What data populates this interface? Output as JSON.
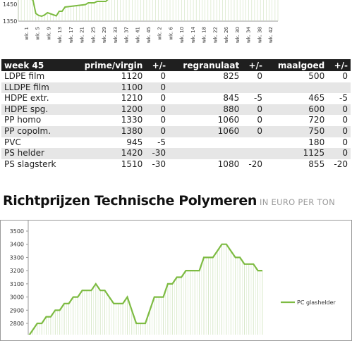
{
  "top_chart": {
    "type": "area",
    "y_ticks": [
      "1450",
      "1350"
    ],
    "x_labels": [
      "wk. 1",
      "wk. 5",
      "wk. 9",
      "wk. 13",
      "wk. 17",
      "wk. 21",
      "wk. 25",
      "wk. 29",
      "wk. 33",
      "wk. 37",
      "wk. 41",
      "wk. 45",
      "wk. 2",
      "wk. 6",
      "wk. 10",
      "wk. 14",
      "wk. 18",
      "wk. 22",
      "wk. 26",
      "wk. 30",
      "wk. 34",
      "wk. 38",
      "wk. 42"
    ],
    "line_color": "#7dbb42"
  },
  "table": {
    "headers": [
      "week 45",
      "prime/virgin",
      "+/-",
      "regranulaat",
      "+/-",
      "maalgoed",
      "+/-"
    ],
    "rows": [
      [
        "LDPE film",
        "1120",
        "0",
        "825",
        "0",
        "500",
        "0"
      ],
      [
        "LLDPE film",
        "1100",
        "0",
        "",
        "",
        "",
        ""
      ],
      [
        "HDPE extr.",
        "1210",
        "0",
        "845",
        "-5",
        "465",
        "-5"
      ],
      [
        "HDPE spg.",
        "1200",
        "0",
        "880",
        "0",
        "600",
        "0"
      ],
      [
        "PP homo",
        "1330",
        "0",
        "1060",
        "0",
        "720",
        "0"
      ],
      [
        "PP copolm.",
        "1380",
        "0",
        "1060",
        "0",
        "750",
        "0"
      ],
      [
        "PVC",
        "945",
        "-5",
        "",
        "",
        "180",
        "0"
      ],
      [
        "PS helder",
        "1420",
        "-30",
        "",
        "",
        "1125",
        "0"
      ],
      [
        "PS slagsterk",
        "1510",
        "-30",
        "1080",
        "-20",
        "855",
        "-20"
      ]
    ]
  },
  "section": {
    "title": "Richtprijzen Technische Polymeren",
    "subtitle": "IN EURO PER TON"
  },
  "chart_data": [
    {
      "type": "area",
      "title": "",
      "y_ticks": [
        1450,
        1350
      ],
      "x": [
        "wk. 1",
        "wk. 5",
        "wk. 9",
        "wk. 13",
        "wk. 17",
        "wk. 21",
        "wk. 25",
        "wk. 29",
        "wk. 33",
        "wk. 37",
        "wk. 41",
        "wk. 45",
        "wk. 2",
        "wk. 6",
        "wk. 10",
        "wk. 14",
        "wk. 18",
        "wk. 22",
        "wk. 26",
        "wk. 30",
        "wk. 34",
        "wk. 38",
        "wk. 42"
      ],
      "color": "#7dbb42"
    },
    {
      "type": "area",
      "title": "",
      "ylim": [
        2700,
        3500
      ],
      "y_ticks": [
        3500,
        3400,
        3300,
        3200,
        3100,
        3000,
        2900,
        2800
      ],
      "series": [
        {
          "name": "PC glashelder",
          "values": [
            2700,
            2750,
            2800,
            2800,
            2850,
            2850,
            2900,
            2900,
            2950,
            2950,
            3000,
            3000,
            3050,
            3050,
            3050,
            3100,
            3050,
            3050,
            3000,
            2950,
            2950,
            2950,
            3000,
            2900,
            2800,
            2800,
            2800,
            2900,
            3000,
            3000,
            3000,
            3100,
            3100,
            3150,
            3150,
            3200,
            3200,
            3200,
            3200,
            3300,
            3300,
            3300,
            3350,
            3400,
            3400,
            3350,
            3300,
            3300,
            3250,
            3250,
            3250,
            3200,
            3200
          ]
        }
      ],
      "legend": "right",
      "color": "#7dbb42"
    }
  ]
}
